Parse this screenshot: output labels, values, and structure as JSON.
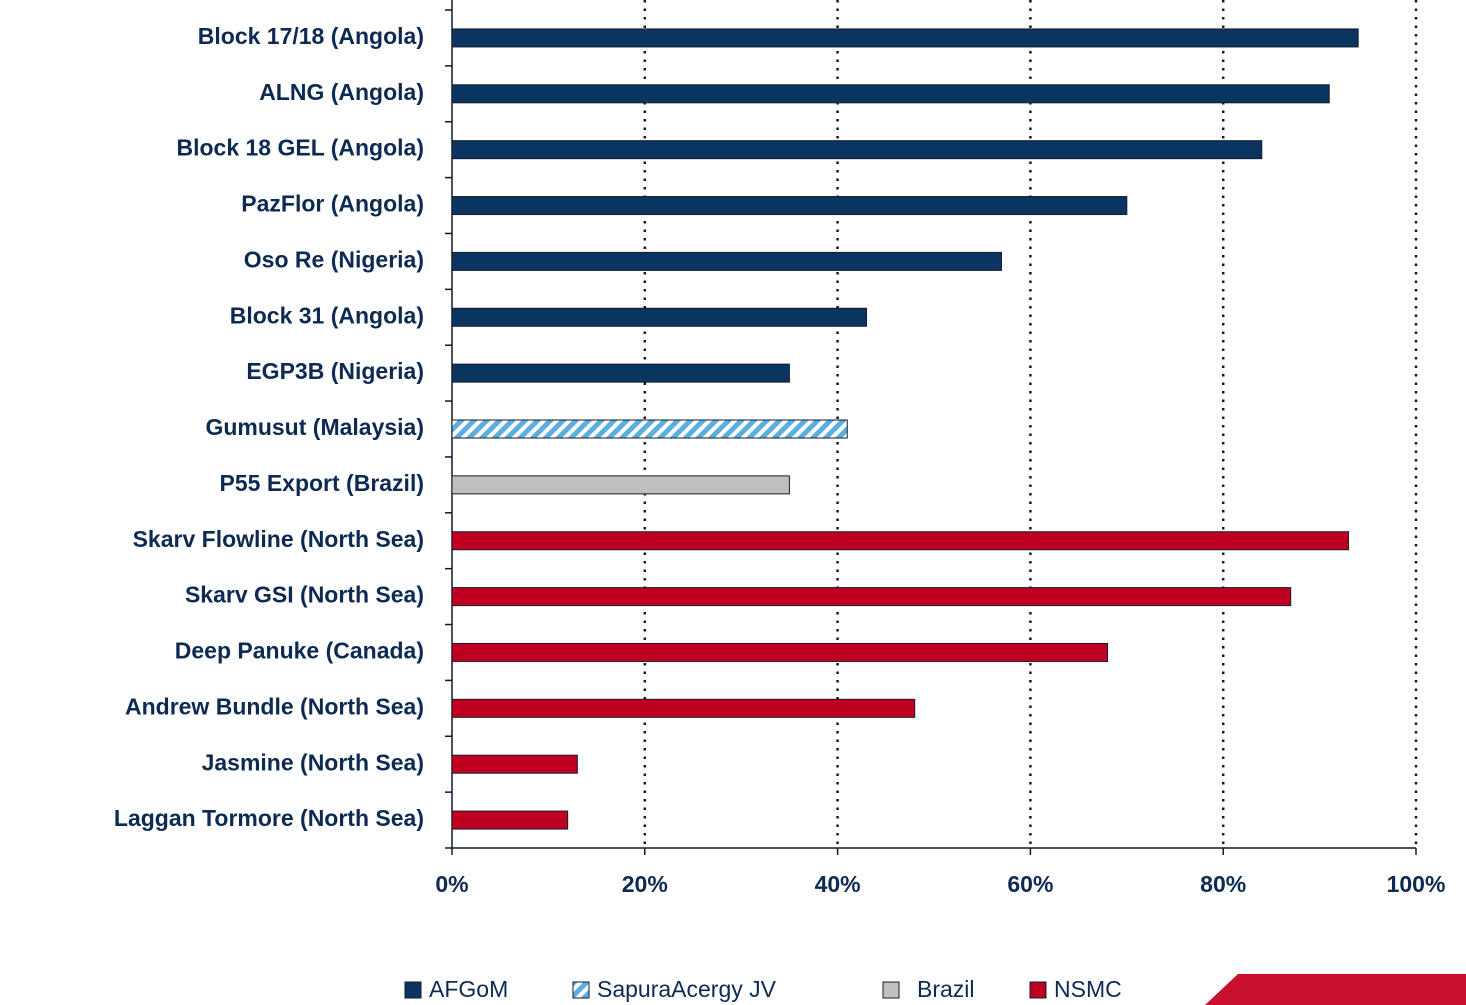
{
  "chart_data": {
    "type": "barh",
    "categories": [
      "Block 17/18 (Angola)",
      "ALNG (Angola)",
      "Block 18 GEL (Angola)",
      "PazFlor (Angola)",
      "Oso Re (Nigeria)",
      "Block 31 (Angola)",
      "EGP3B (Nigeria)",
      "Gumusut (Malaysia)",
      "P55 Export (Brazil)",
      "Skarv Flowline (North Sea)",
      "Skarv GSI (North Sea)",
      "Deep Panuke (Canada)",
      "Andrew Bundle (North Sea)",
      "Jasmine (North Sea)",
      "Laggan Tormore (North Sea)"
    ],
    "series": [
      {
        "name": "AFGoM",
        "color": "#0a3560",
        "values": [
          94,
          91,
          84,
          70,
          57,
          43,
          35,
          null,
          null,
          null,
          null,
          null,
          null,
          null,
          null
        ]
      },
      {
        "name": "SapuraAcergy JV",
        "color": "#5aaee0",
        "hatch": true,
        "values": [
          null,
          null,
          null,
          null,
          null,
          null,
          null,
          41,
          null,
          null,
          null,
          null,
          null,
          null,
          null
        ]
      },
      {
        "name": "Brazil",
        "color": "#c0c0c0",
        "values": [
          null,
          null,
          null,
          null,
          null,
          null,
          null,
          null,
          35,
          null,
          null,
          null,
          null,
          null,
          null
        ]
      },
      {
        "name": "NSMC",
        "color": "#c00020",
        "values": [
          null,
          null,
          null,
          null,
          null,
          null,
          null,
          null,
          null,
          93,
          87,
          68,
          48,
          13,
          12
        ]
      }
    ],
    "xlim": [
      0,
      100
    ],
    "xticks": [
      {
        "value": 0,
        "label": "0%"
      },
      {
        "value": 20,
        "label": "20%"
      },
      {
        "value": 40,
        "label": "40%"
      },
      {
        "value": 60,
        "label": "60%"
      },
      {
        "value": 80,
        "label": "80%"
      },
      {
        "value": 100,
        "label": "100%"
      }
    ],
    "grid": true,
    "legend": "bottom"
  }
}
